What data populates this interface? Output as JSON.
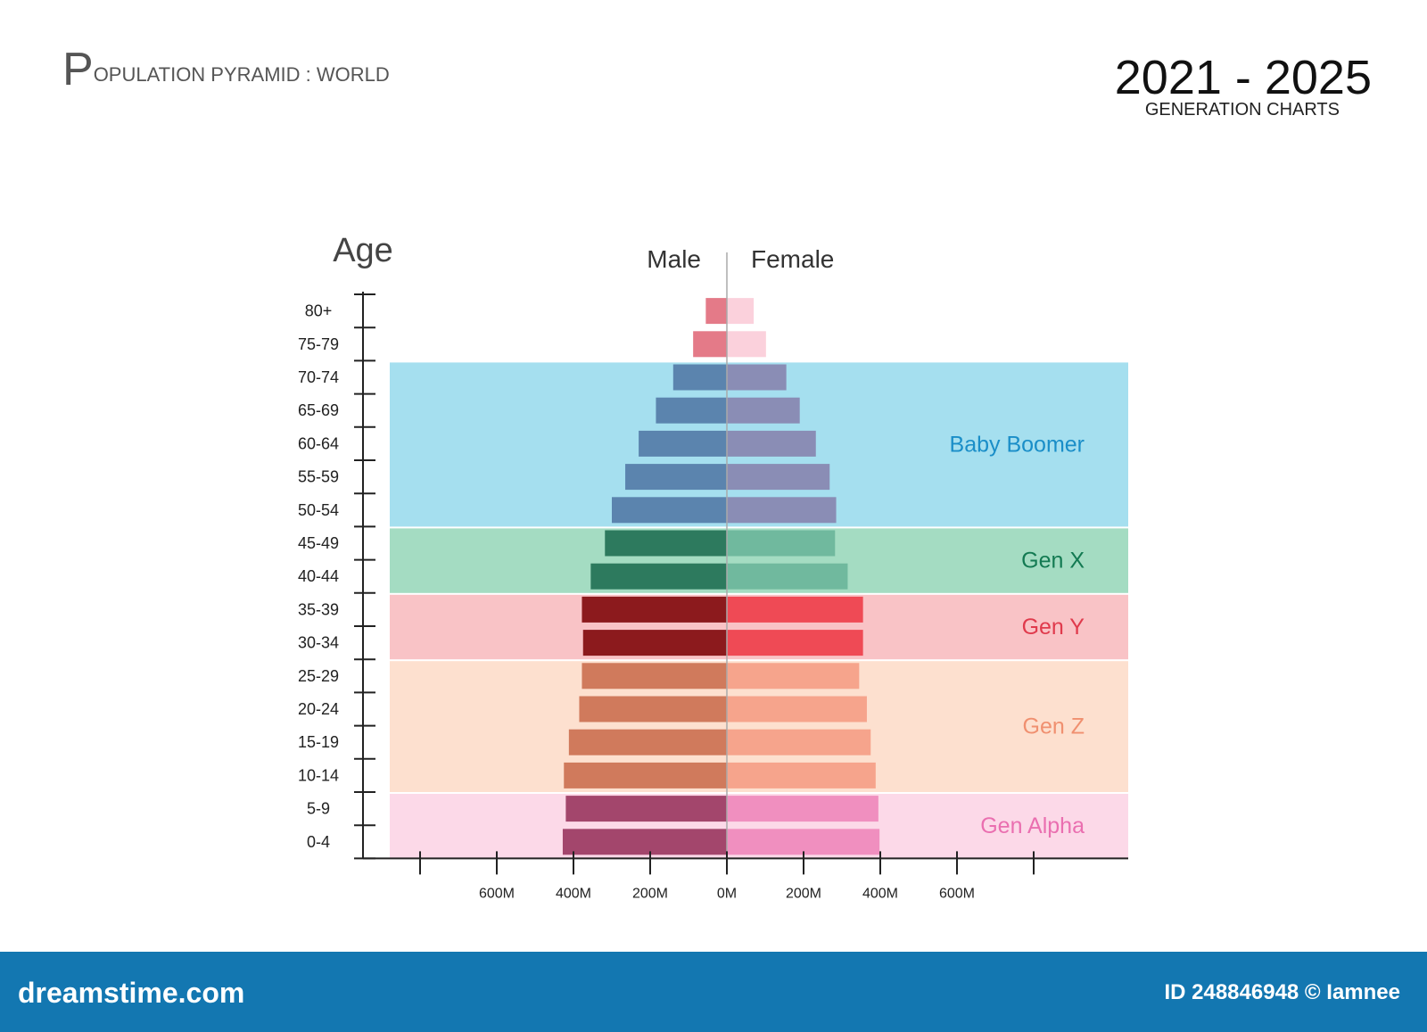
{
  "header": {
    "title_initial": "P",
    "title_rest": "OPULATION PYRAMID : WORLD",
    "range_title": "2021 - 2025",
    "range_subtitle": "GENERATION CHARTS"
  },
  "chart_data": {
    "type": "bar",
    "orientation": "horizontal-pyramid",
    "ylabel": "Age",
    "categories": [
      "80+",
      "75-79",
      "70-74",
      "65-69",
      "60-64",
      "55-59",
      "50-54",
      "45-49",
      "40-44",
      "35-39",
      "30-34",
      "25-29",
      "20-24",
      "15-19",
      "10-14",
      "5-9",
      "0-4"
    ],
    "series": [
      {
        "name": "Male",
        "values": [
          55,
          88,
          140,
          185,
          230,
          265,
          300,
          318,
          355,
          378,
          375,
          378,
          385,
          412,
          425,
          420,
          428
        ]
      },
      {
        "name": "Female",
        "values": [
          70,
          102,
          155,
          190,
          232,
          268,
          285,
          282,
          315,
          355,
          355,
          345,
          365,
          375,
          388,
          395,
          398
        ]
      }
    ],
    "x_tick_labels": [
      "600M",
      "400M",
      "200M",
      "0M",
      "200M",
      "400M",
      "600M"
    ],
    "x_tick_values": [
      -600,
      -400,
      -200,
      0,
      200,
      400,
      600
    ],
    "xlim": [
      -960,
      1040
    ],
    "generations": [
      {
        "name": "Baby Boomer",
        "from": "70-74",
        "to": "50-54",
        "band_color": "#a5dfef",
        "label_color": "#1a8ec8",
        "male_color": "#5b84ae",
        "female_color": "#8a8db5"
      },
      {
        "name": "Gen X",
        "from": "45-49",
        "to": "40-44",
        "band_color": "#a4dcc2",
        "label_color": "#137a52",
        "male_color": "#2d7a5e",
        "female_color": "#70b99e"
      },
      {
        "name": "Gen Y",
        "from": "35-39",
        "to": "30-34",
        "band_color": "#f9c3c6",
        "label_color": "#e03a4c",
        "male_color": "#8c1a1d",
        "female_color": "#ef4a55"
      },
      {
        "name": "Gen Z",
        "from": "25-29",
        "to": "10-14",
        "band_color": "#fde0cf",
        "label_color": "#f09070",
        "male_color": "#d07a5c",
        "female_color": "#f6a48c"
      },
      {
        "name": "Gen Alpha",
        "from": "5-9",
        "to": "0-4",
        "band_color": "#fcd9e8",
        "label_color": "#ea6fb0",
        "male_color": "#a3466c",
        "female_color": "#f08fbf"
      }
    ],
    "colors": {
      "older_male": "#e47a88",
      "older_female": "#fbd1dc",
      "axis": "#222222",
      "center_line": "#aaaaaa"
    }
  },
  "footer": {
    "brand": "dreamstime.com",
    "id_text": "ID 248846948 © Iamnee"
  }
}
